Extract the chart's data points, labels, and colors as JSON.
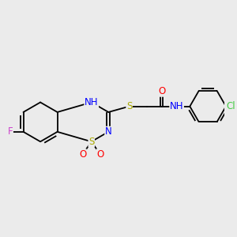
{
  "bg_color": "#ebebeb",
  "bond_color": "#000000",
  "atom_colors": {
    "F": "#cc44cc",
    "N": "#0000ff",
    "S": "#aaaa00",
    "O": "#ff0000",
    "Cl": "#44cc44",
    "H": "#555555",
    "C": "#000000"
  },
  "font_size": 8.5,
  "fig_width": 3.0,
  "fig_height": 3.0,
  "dpi": 100
}
